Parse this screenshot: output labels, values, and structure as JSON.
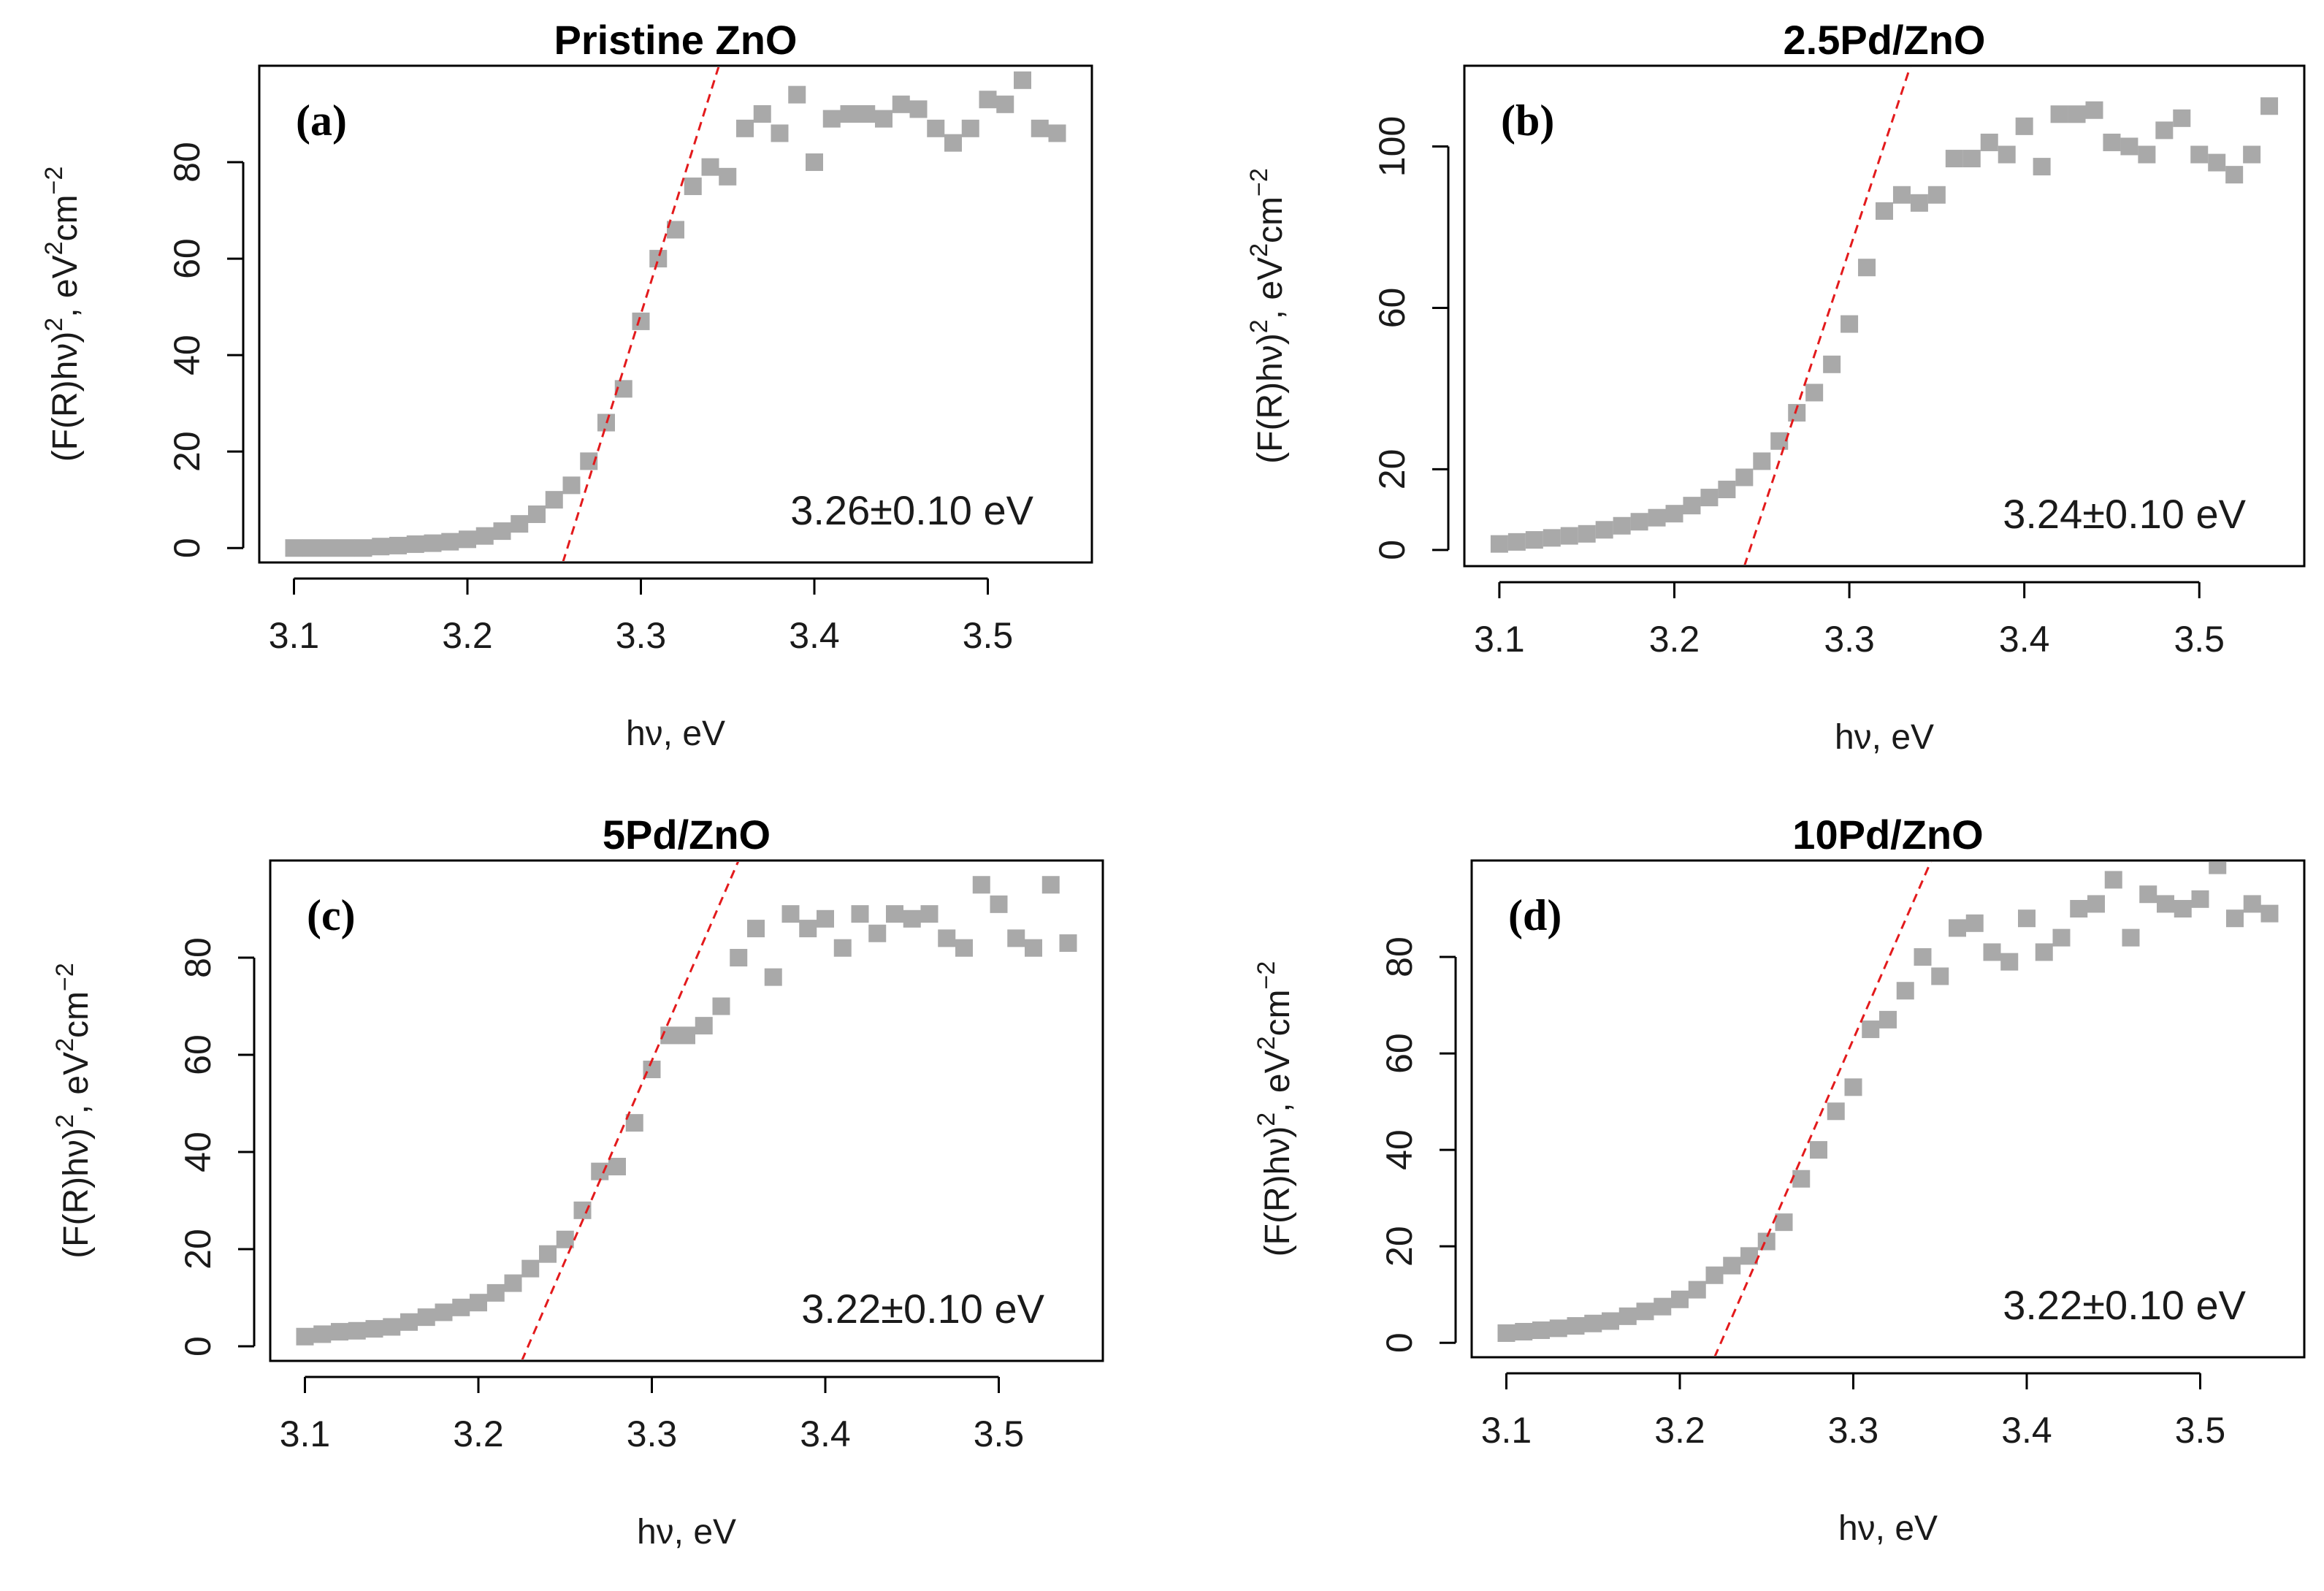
{
  "chart_data": [
    {
      "type": "scatter",
      "panel_label": "(a)",
      "title": "Pristine ZnO",
      "xlabel": "hν, eV",
      "ylabel": [
        "(F(R)hν)",
        "2",
        ", eV",
        "2",
        "cm",
        "−2"
      ],
      "xlim": [
        3.08,
        3.56
      ],
      "ylim": [
        -3,
        100
      ],
      "xticks": [
        3.1,
        3.2,
        3.3,
        3.4,
        3.5
      ],
      "xtick_labels": [
        "3.1",
        "3.2",
        "3.3",
        "3.4",
        "3.5"
      ],
      "yticks": [
        0,
        20,
        40,
        60,
        80
      ],
      "ytick_labels": [
        "0",
        "20",
        "40",
        "60",
        "80"
      ],
      "annotation": "3.26±0.10 eV",
      "x": [
        3.1,
        3.11,
        3.12,
        3.13,
        3.14,
        3.15,
        3.16,
        3.17,
        3.18,
        3.19,
        3.2,
        3.21,
        3.22,
        3.23,
        3.24,
        3.25,
        3.26,
        3.27,
        3.28,
        3.29,
        3.3,
        3.31,
        3.32,
        3.33,
        3.34,
        3.35,
        3.36,
        3.37,
        3.38,
        3.39,
        3.4,
        3.41,
        3.42,
        3.43,
        3.44,
        3.45,
        3.46,
        3.47,
        3.48,
        3.49,
        3.5,
        3.51,
        3.52,
        3.53,
        3.54
      ],
      "y": [
        0,
        0,
        0,
        0,
        0,
        0.3,
        0.5,
        0.8,
        1.0,
        1.3,
        1.8,
        2.5,
        3.5,
        5,
        7,
        10,
        13,
        18,
        26,
        33,
        47,
        60,
        66,
        75,
        79,
        77,
        87,
        90,
        86,
        94,
        80,
        89,
        90,
        90,
        89,
        92,
        91,
        87,
        84,
        87,
        93,
        92,
        97,
        87,
        86
      ],
      "fit_line": {
        "x": [
          3.255,
          3.345
        ],
        "y": [
          -3,
          100
        ]
      }
    },
    {
      "type": "scatter",
      "panel_label": "(b)",
      "title": "2.5Pd/ZnO",
      "xlabel": "hν, eV",
      "ylabel": [
        "(F(R)hν)",
        "2",
        ", eV",
        "2",
        "cm",
        "−2"
      ],
      "xlim": [
        3.08,
        3.56
      ],
      "ylim": [
        -4,
        120
      ],
      "xticks": [
        3.1,
        3.2,
        3.3,
        3.4,
        3.5
      ],
      "xtick_labels": [
        "3.1",
        "3.2",
        "3.3",
        "3.4",
        "3.5"
      ],
      "yticks": [
        0,
        20,
        60,
        100
      ],
      "ytick_labels": [
        "0",
        "20",
        "60",
        "100"
      ],
      "annotation": "3.24±0.10 eV",
      "x": [
        3.1,
        3.11,
        3.12,
        3.13,
        3.14,
        3.15,
        3.16,
        3.17,
        3.18,
        3.19,
        3.2,
        3.21,
        3.22,
        3.23,
        3.24,
        3.25,
        3.26,
        3.27,
        3.28,
        3.29,
        3.3,
        3.31,
        3.32,
        3.33,
        3.34,
        3.35,
        3.36,
        3.37,
        3.38,
        3.39,
        3.4,
        3.41,
        3.42,
        3.43,
        3.44,
        3.45,
        3.46,
        3.47,
        3.48,
        3.49,
        3.5,
        3.51,
        3.52,
        3.53,
        3.54
      ],
      "y": [
        1.5,
        2,
        2.5,
        3,
        3.5,
        4,
        5,
        6,
        7,
        8,
        9,
        11,
        13,
        15,
        18,
        22,
        27,
        34,
        39,
        46,
        56,
        70,
        84,
        88,
        86,
        88,
        97,
        97,
        101,
        98,
        105,
        95,
        108,
        108,
        109,
        101,
        100,
        98,
        104,
        107,
        98,
        96,
        93,
        98,
        110
      ],
      "fit_line": {
        "x": [
          3.24,
          3.335
        ],
        "y": [
          -4,
          120
        ]
      }
    },
    {
      "type": "scatter",
      "panel_label": "(c)",
      "title": "5Pd/ZnO",
      "xlabel": "hν, eV",
      "ylabel": [
        "(F(R)hν)",
        "2",
        ", eV",
        "2",
        "cm",
        "−2"
      ],
      "xlim": [
        3.08,
        3.56
      ],
      "ylim": [
        -3,
        100
      ],
      "xticks": [
        3.1,
        3.2,
        3.3,
        3.4,
        3.5
      ],
      "xtick_labels": [
        "3.1",
        "3.2",
        "3.3",
        "3.4",
        "3.5"
      ],
      "yticks": [
        0,
        20,
        40,
        60,
        80
      ],
      "ytick_labels": [
        "0",
        "20",
        "40",
        "60",
        "80"
      ],
      "annotation": "3.22±0.10 eV",
      "x": [
        3.1,
        3.11,
        3.12,
        3.13,
        3.14,
        3.15,
        3.16,
        3.17,
        3.18,
        3.19,
        3.2,
        3.21,
        3.22,
        3.23,
        3.24,
        3.25,
        3.26,
        3.27,
        3.28,
        3.29,
        3.3,
        3.31,
        3.32,
        3.33,
        3.34,
        3.35,
        3.36,
        3.37,
        3.38,
        3.39,
        3.4,
        3.41,
        3.42,
        3.43,
        3.44,
        3.45,
        3.46,
        3.47,
        3.48,
        3.49,
        3.5,
        3.51,
        3.52,
        3.53,
        3.54
      ],
      "y": [
        2,
        2.5,
        3,
        3.2,
        3.6,
        4,
        5,
        6,
        7,
        8,
        9,
        11,
        13,
        16,
        19,
        22,
        28,
        36,
        37,
        46,
        57,
        64,
        64,
        66,
        70,
        80,
        86,
        76,
        89,
        86,
        88,
        82,
        89,
        85,
        89,
        88,
        89,
        84,
        82,
        95,
        91,
        84,
        82,
        95,
        83
      ],
      "fit_line": {
        "x": [
          3.225,
          3.35
        ],
        "y": [
          -3,
          100
        ]
      }
    },
    {
      "type": "scatter",
      "panel_label": "(d)",
      "title": "10Pd/ZnO",
      "xlabel": "hν, eV",
      "ylabel": [
        "(F(R)hν)",
        "2",
        ", eV",
        "2",
        "cm",
        "−2"
      ],
      "xlim": [
        3.08,
        3.56
      ],
      "ylim": [
        -3,
        100
      ],
      "xticks": [
        3.1,
        3.2,
        3.3,
        3.4,
        3.5
      ],
      "xtick_labels": [
        "3.1",
        "3.2",
        "3.3",
        "3.4",
        "3.5"
      ],
      "yticks": [
        0,
        20,
        40,
        60,
        80
      ],
      "ytick_labels": [
        "0",
        "20",
        "40",
        "60",
        "80"
      ],
      "annotation": "3.22±0.10 eV",
      "x": [
        3.1,
        3.11,
        3.12,
        3.13,
        3.14,
        3.15,
        3.16,
        3.17,
        3.18,
        3.19,
        3.2,
        3.21,
        3.22,
        3.23,
        3.24,
        3.25,
        3.26,
        3.27,
        3.28,
        3.29,
        3.3,
        3.31,
        3.32,
        3.33,
        3.34,
        3.35,
        3.36,
        3.37,
        3.38,
        3.39,
        3.4,
        3.41,
        3.42,
        3.43,
        3.44,
        3.45,
        3.46,
        3.47,
        3.48,
        3.49,
        3.5,
        3.51,
        3.52,
        3.53,
        3.54
      ],
      "y": [
        2,
        2.3,
        2.6,
        3,
        3.5,
        4,
        4.5,
        5.5,
        6.5,
        7.5,
        9,
        11,
        14,
        16,
        18,
        21,
        25,
        34,
        40,
        48,
        53,
        65,
        67,
        73,
        80,
        76,
        86,
        87,
        81,
        79,
        88,
        81,
        84,
        90,
        91,
        96,
        84,
        93,
        91,
        90,
        92,
        99,
        88,
        91,
        89
      ],
      "fit_line": {
        "x": [
          3.22,
          3.345
        ],
        "y": [
          -3,
          100
        ]
      }
    }
  ],
  "colors": {
    "points": "#a9a9a9",
    "fit_line": "#e31a1c",
    "axis": "#000000",
    "text": "#1a1a1a"
  }
}
